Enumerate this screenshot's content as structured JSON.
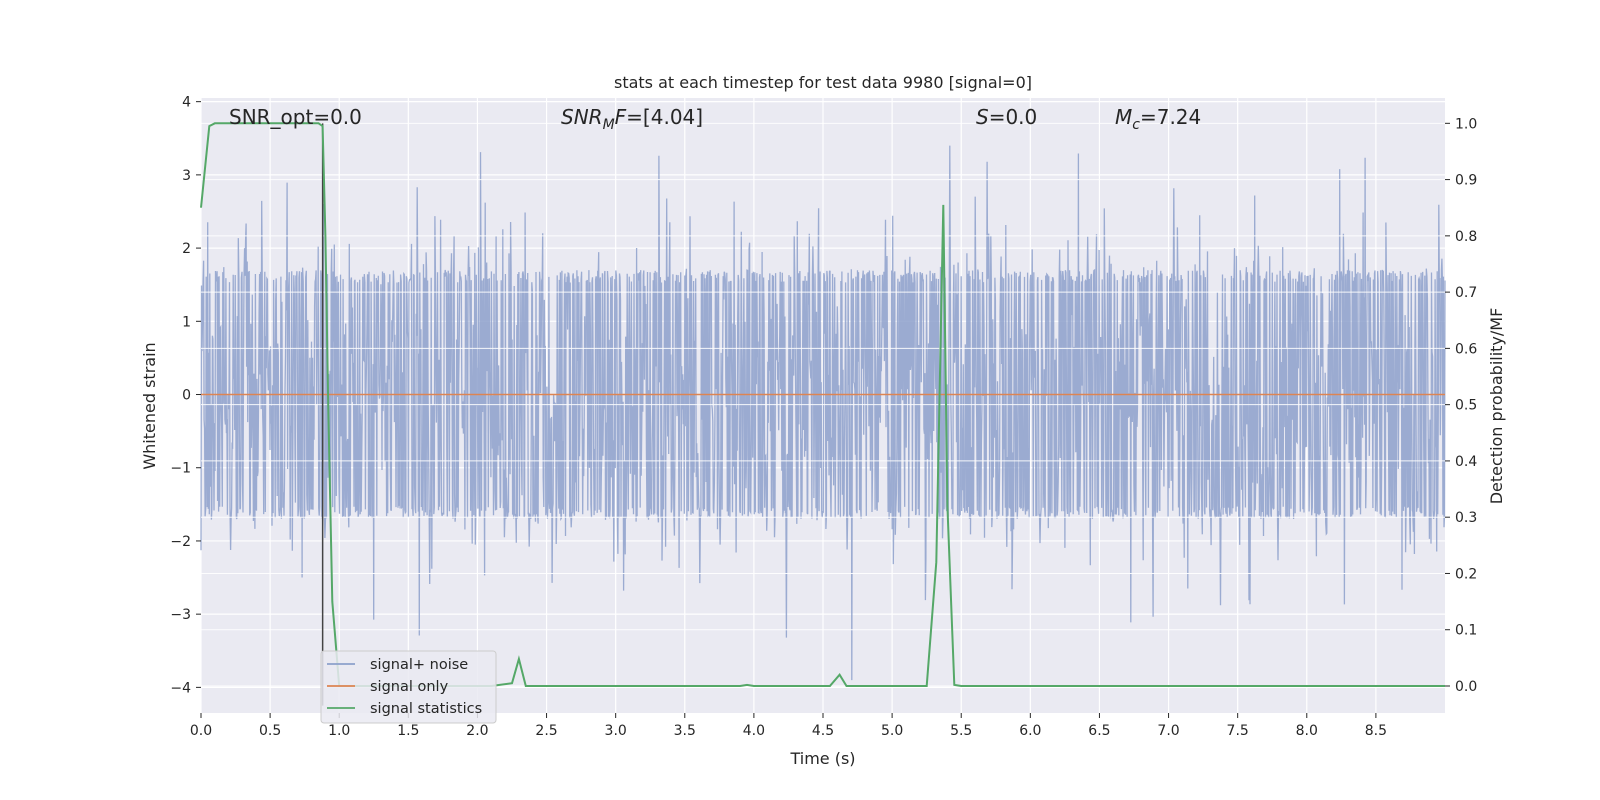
{
  "chart_data": {
    "type": "line",
    "title": "stats at each timestep for test data 9980 [signal=0]",
    "xlabel": "Time (s)",
    "ylabel_left": "Whitened strain",
    "ylabel_right": "Detection probability/MF",
    "xlim": [
      0,
      9.0
    ],
    "ylim_left": [
      -4.35,
      4.05
    ],
    "ylim_right": [
      -0.048,
      1.045
    ],
    "x_ticks": [
      "0.0",
      "0.5",
      "1.0",
      "1.5",
      "2.0",
      "2.5",
      "3.0",
      "3.5",
      "4.0",
      "4.5",
      "5.0",
      "5.5",
      "6.0",
      "6.5",
      "7.0",
      "7.5",
      "8.0",
      "8.5"
    ],
    "x_tick_values": [
      0,
      0.5,
      1,
      1.5,
      2,
      2.5,
      3,
      3.5,
      4,
      4.5,
      5,
      5.5,
      6,
      6.5,
      7,
      7.5,
      8,
      8.5
    ],
    "y_ticks_left": [
      "−4",
      "−3",
      "−2",
      "−1",
      "0",
      "1",
      "2",
      "3",
      "4"
    ],
    "y_tick_values_left": [
      -4,
      -3,
      -2,
      -1,
      0,
      1,
      2,
      3,
      4
    ],
    "y_ticks_right": [
      "0.0",
      "0.1",
      "0.2",
      "0.3",
      "0.4",
      "0.5",
      "0.6",
      "0.7",
      "0.8",
      "0.9",
      "1.0"
    ],
    "y_tick_values_right": [
      0,
      0.1,
      0.2,
      0.3,
      0.4,
      0.5,
      0.6,
      0.7,
      0.8,
      0.9,
      1.0
    ],
    "grid": true,
    "legend_placement": "lower-left",
    "annotations": {
      "snr_opt": "SNR_opt=0.0",
      "snr_mf_base": "SNR",
      "snr_mf_sub": "M",
      "snr_mf_rest": "F=[4.04]",
      "s": "S=0.0",
      "mc_base": "M",
      "mc_sub": "c",
      "mc_rest": "=7.24"
    },
    "vline_x": 0.88,
    "series": [
      {
        "name": "signal+ noise",
        "color": "#8da0cb",
        "axis": "left",
        "description": "whitened strain noise, approx ±1.7 dense band with spikes to ±3.6",
        "amplitude_band": 1.7,
        "x_range": [
          0,
          9.0
        ]
      },
      {
        "name": "signal only",
        "color": "#dd8452",
        "axis": "left",
        "x": [
          0,
          9.0
        ],
        "y": [
          0,
          0
        ]
      },
      {
        "name": "signal statistics",
        "color": "#55a868",
        "axis": "right",
        "x": [
          0,
          0.06,
          0.1,
          0.85,
          0.88,
          0.9,
          0.92,
          0.95,
          1.0,
          1.5,
          2.1,
          2.25,
          2.3,
          2.35,
          2.5,
          3.9,
          3.95,
          4.0,
          4.55,
          4.62,
          4.67,
          4.72,
          5.25,
          5.32,
          5.37,
          5.4,
          5.45,
          5.5,
          9.0
        ],
        "y": [
          0.85,
          0.995,
          1.0,
          1.0,
          0.995,
          0.8,
          0.5,
          0.15,
          0.0,
          0.0,
          0.0,
          0.005,
          0.048,
          0.0,
          0.0,
          0.0,
          0.002,
          0.0,
          0.0,
          0.02,
          0.0,
          0.0,
          0.0,
          0.22,
          0.855,
          0.32,
          0.002,
          0.0,
          0.0
        ]
      }
    ]
  },
  "colors": {
    "plot_bg": "#eaeaf2",
    "grid": "#ffffff",
    "noise": "#8da0cb",
    "signal_only": "#dd8452",
    "statistics": "#55a868",
    "vline": "#444444"
  }
}
